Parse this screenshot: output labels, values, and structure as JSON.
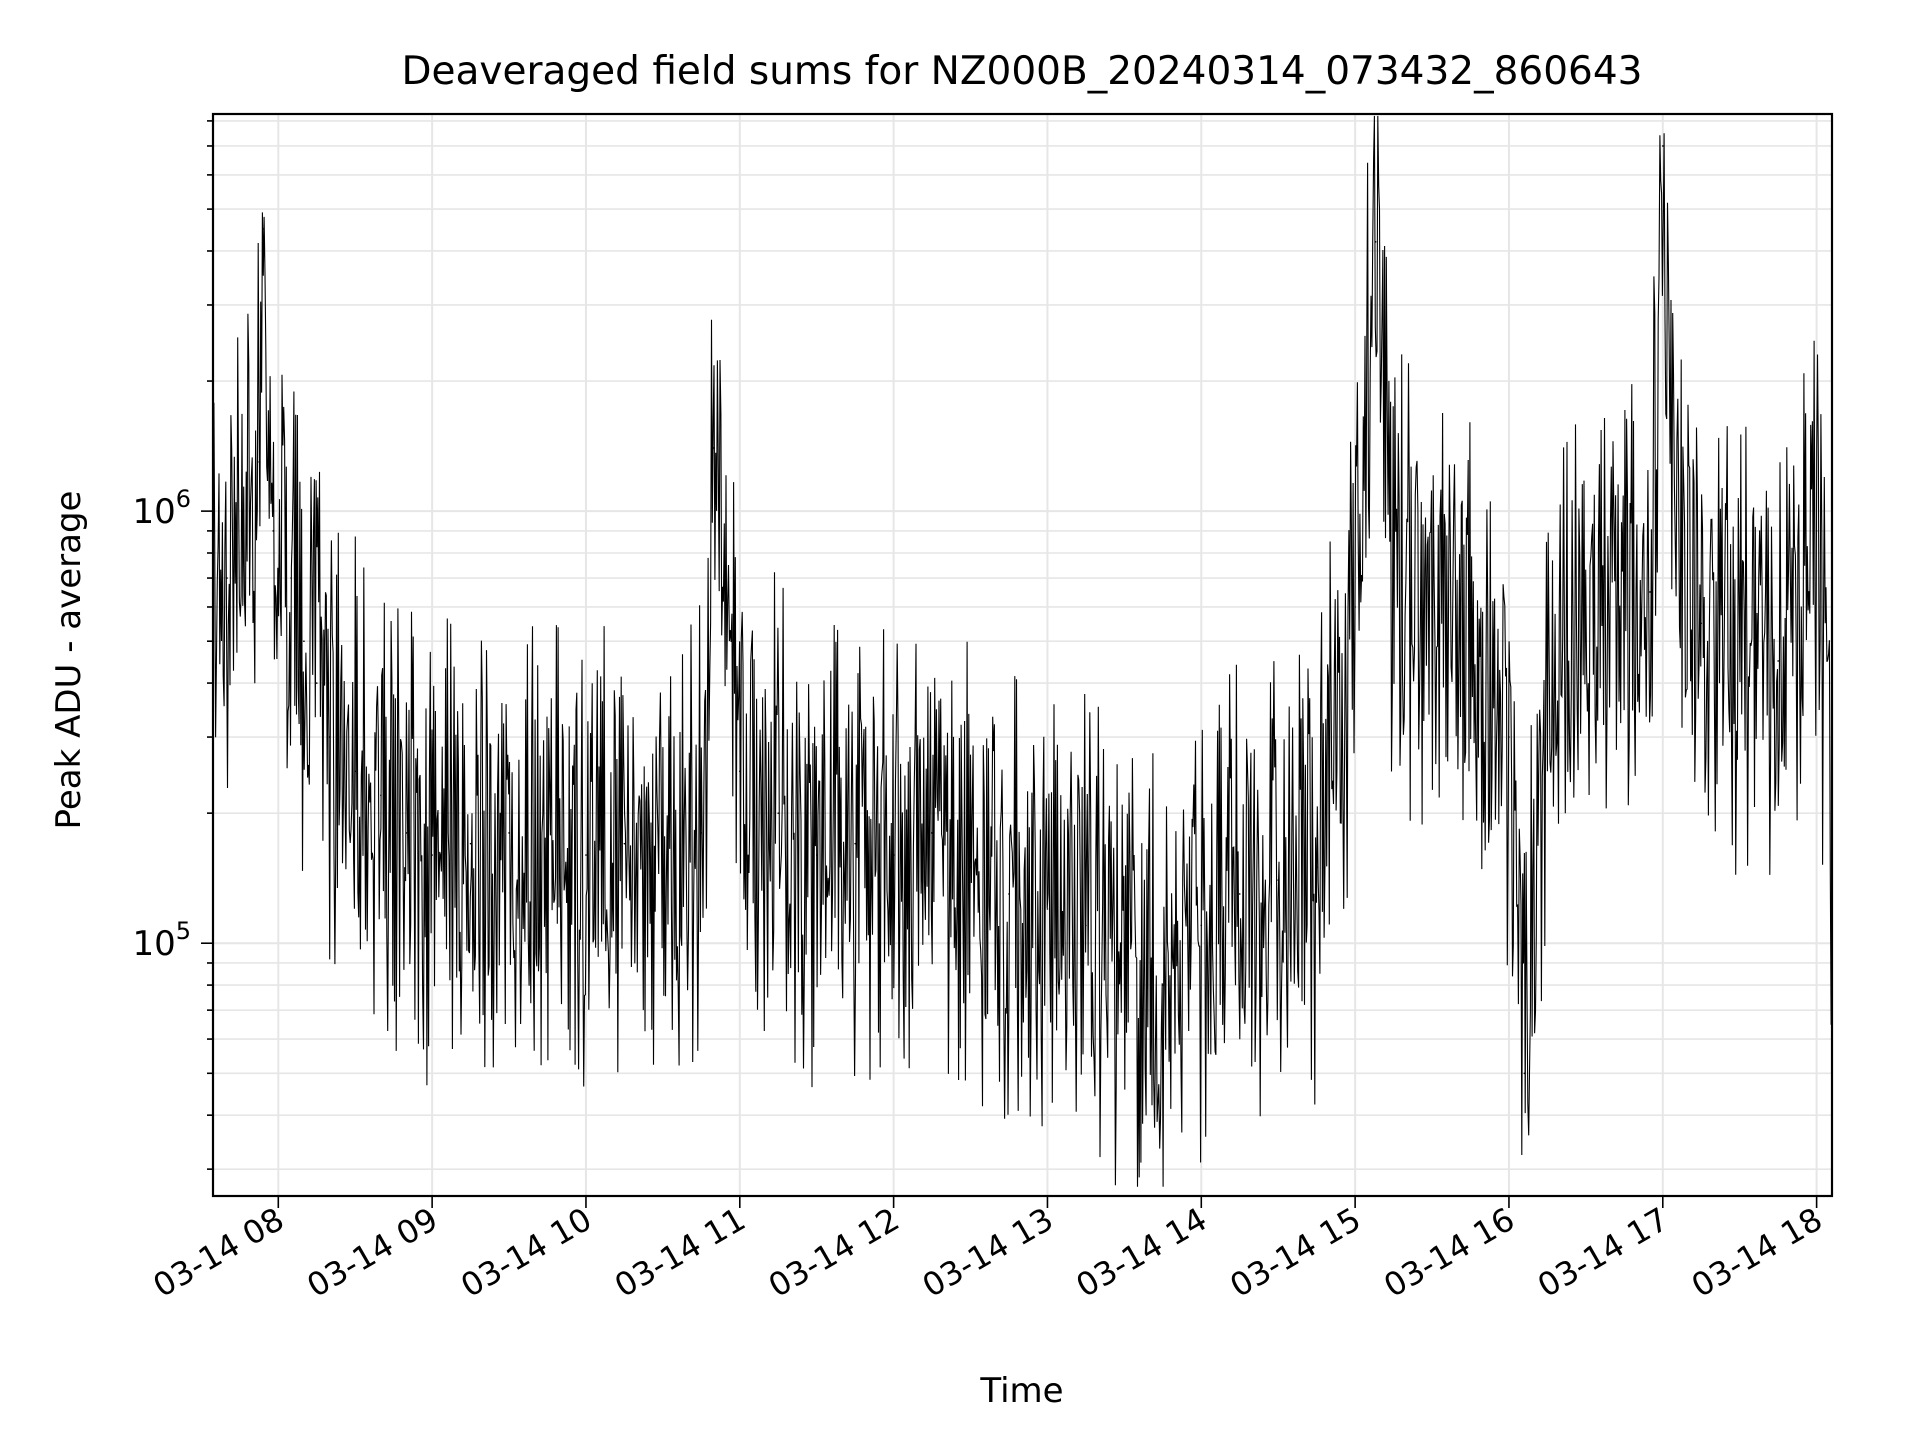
{
  "chart_data": {
    "type": "line",
    "title": "Deaveraged field sums for NZ000B_20240314_073432_860643",
    "xlabel": "Time",
    "ylabel": "Peak ADU - average",
    "yscale": "log",
    "xlim": [
      "2024-03-14 07:34:32",
      "2024-03-14 18:06:00"
    ],
    "ylim": [
      26000,
      8300000
    ],
    "grid": true,
    "line_color": "#000000",
    "grid_color": "#e6e6e6",
    "x_ticks": [
      "03-14 08",
      "03-14 09",
      "03-14 10",
      "03-14 11",
      "03-14 12",
      "03-14 13",
      "03-14 14",
      "03-14 15",
      "03-14 16",
      "03-14 17",
      "03-14 18"
    ],
    "x_tick_values": [
      "2024-03-14 08:00",
      "2024-03-14 09:00",
      "2024-03-14 10:00",
      "2024-03-14 11:00",
      "2024-03-14 12:00",
      "2024-03-14 13:00",
      "2024-03-14 14:00",
      "2024-03-14 15:00",
      "2024-03-14 16:00",
      "2024-03-14 17:00",
      "2024-03-14 18:00"
    ],
    "y_ticks": [
      {
        "value": 100000,
        "base": "10",
        "exp": "5"
      },
      {
        "value": 1000000,
        "base": "10",
        "exp": "6"
      }
    ],
    "series": [
      {
        "x": [
          "2024-03-14 07:34",
          "2024-03-14 07:40",
          "2024-03-14 07:46",
          "2024-03-14 07:52",
          "2024-03-14 07:54",
          "2024-03-14 07:58",
          "2024-03-14 08:05",
          "2024-03-14 08:10",
          "2024-03-14 08:15",
          "2024-03-14 08:20",
          "2024-03-14 08:30",
          "2024-03-14 08:40",
          "2024-03-14 08:50",
          "2024-03-14 09:00",
          "2024-03-14 09:15",
          "2024-03-14 09:30",
          "2024-03-14 09:45",
          "2024-03-14 10:00",
          "2024-03-14 10:15",
          "2024-03-14 10:30",
          "2024-03-14 10:45",
          "2024-03-14 10:50",
          "2024-03-14 11:00",
          "2024-03-14 11:15",
          "2024-03-14 11:30",
          "2024-03-14 11:45",
          "2024-03-14 12:00",
          "2024-03-14 12:15",
          "2024-03-14 12:30",
          "2024-03-14 12:45",
          "2024-03-14 13:00",
          "2024-03-14 13:15",
          "2024-03-14 13:30",
          "2024-03-14 13:45",
          "2024-03-14 14:00",
          "2024-03-14 14:15",
          "2024-03-14 14:30",
          "2024-03-14 14:45",
          "2024-03-14 15:00",
          "2024-03-14 15:08",
          "2024-03-14 15:15",
          "2024-03-14 15:30",
          "2024-03-14 15:45",
          "2024-03-14 16:00",
          "2024-03-14 16:06",
          "2024-03-14 16:15",
          "2024-03-14 16:30",
          "2024-03-14 16:45",
          "2024-03-14 16:55",
          "2024-03-14 17:00",
          "2024-03-14 17:05",
          "2024-03-14 17:15",
          "2024-03-14 17:30",
          "2024-03-14 17:45",
          "2024-03-14 18:00",
          "2024-03-14 18:06"
        ],
        "y": [
          600000,
          700000,
          1000000,
          1300000,
          4500000,
          900000,
          700000,
          500000,
          400000,
          300000,
          250000,
          220000,
          180000,
          160000,
          170000,
          180000,
          170000,
          160000,
          170000,
          160000,
          180000,
          1400000,
          250000,
          200000,
          160000,
          170000,
          160000,
          180000,
          150000,
          130000,
          120000,
          110000,
          90000,
          80000,
          110000,
          130000,
          140000,
          150000,
          600000,
          4200000,
          700000,
          600000,
          500000,
          300000,
          50000,
          400000,
          500000,
          600000,
          650000,
          7000000,
          700000,
          550000,
          500000,
          450000,
          900000,
          200000
        ]
      }
    ]
  }
}
